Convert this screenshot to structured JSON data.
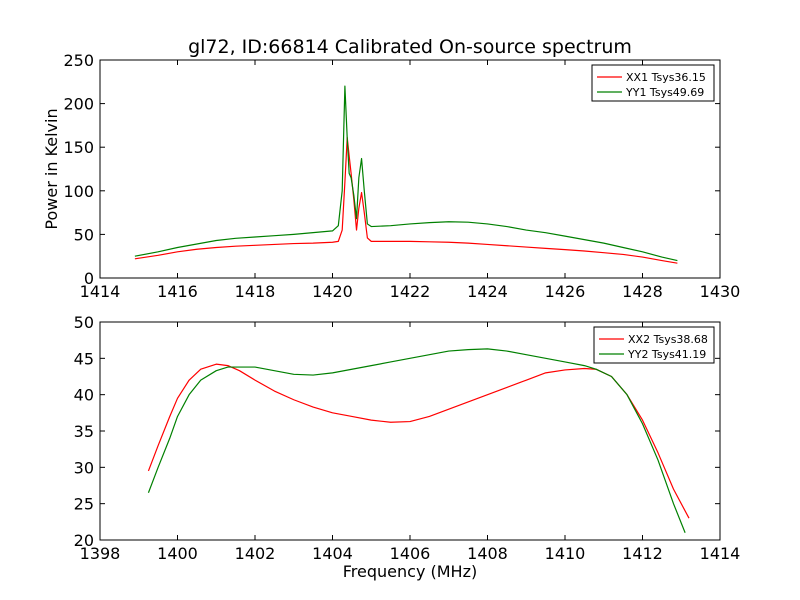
{
  "title": "gl72, ID:66814 Calibrated On-source spectrum",
  "chart_data": [
    {
      "type": "line",
      "ylabel": "Power in Kelvin",
      "xlabel": "",
      "xlim": [
        1414,
        1430
      ],
      "ylim": [
        0,
        250
      ],
      "xticks": [
        "1414",
        "1416",
        "1418",
        "1420",
        "1422",
        "1424",
        "1426",
        "1428",
        "1430"
      ],
      "yticks": [
        "0",
        "50",
        "100",
        "150",
        "200",
        "250"
      ],
      "legend_position": "top-right",
      "series": [
        {
          "name": "XX1 Tsys36.15",
          "color": "#ff0000",
          "x": [
            1414.9,
            1415.5,
            1416,
            1416.5,
            1417,
            1417.5,
            1418,
            1418.5,
            1419,
            1419.5,
            1420,
            1420.15,
            1420.25,
            1420.32,
            1420.38,
            1420.43,
            1420.48,
            1420.55,
            1420.62,
            1420.68,
            1420.75,
            1420.82,
            1420.9,
            1421,
            1421.5,
            1422,
            1422.5,
            1423,
            1423.5,
            1424,
            1424.5,
            1425,
            1425.5,
            1426,
            1426.5,
            1427,
            1427.5,
            1428,
            1428.5,
            1428.9
          ],
          "y": [
            22,
            26,
            30,
            33,
            35,
            36.5,
            37.5,
            38.5,
            39.5,
            40,
            41,
            42,
            55,
            110,
            161,
            140,
            120,
            90,
            55,
            80,
            98,
            75,
            46,
            42,
            42,
            42,
            41.5,
            41,
            40,
            38.5,
            37,
            35.5,
            34,
            32.5,
            31,
            29,
            27,
            24,
            20,
            17
          ]
        },
        {
          "name": "YY1 Tsys49.69",
          "color": "#008000",
          "x": [
            1414.9,
            1415.5,
            1416,
            1416.5,
            1417,
            1417.5,
            1418,
            1418.5,
            1419,
            1419.5,
            1420,
            1420.15,
            1420.25,
            1420.32,
            1420.38,
            1420.43,
            1420.48,
            1420.55,
            1420.62,
            1420.68,
            1420.75,
            1420.82,
            1420.9,
            1421,
            1421.5,
            1422,
            1422.5,
            1423,
            1423.5,
            1424,
            1424.5,
            1425,
            1425.5,
            1426,
            1426.5,
            1427,
            1427.5,
            1428,
            1428.5,
            1428.9
          ],
          "y": [
            25,
            30,
            35,
            39,
            43,
            45.5,
            47,
            48.5,
            50,
            52,
            54,
            60,
            100,
            220,
            160,
            120,
            115,
            95,
            68,
            115,
            137,
            100,
            62,
            59,
            60,
            62,
            63.5,
            64.5,
            64,
            62,
            59,
            55,
            52,
            48,
            44,
            40,
            35,
            30,
            24,
            20
          ]
        }
      ]
    },
    {
      "type": "line",
      "ylabel": "",
      "xlabel": "Frequency (MHz)",
      "xlim": [
        1398,
        1414
      ],
      "ylim": [
        20,
        50
      ],
      "xticks": [
        "1398",
        "1400",
        "1402",
        "1404",
        "1406",
        "1408",
        "1410",
        "1412",
        "1414"
      ],
      "yticks": [
        "20",
        "25",
        "30",
        "35",
        "40",
        "45",
        "50"
      ],
      "legend_position": "top-right",
      "series": [
        {
          "name": "XX2 Tsys38.68",
          "color": "#ff0000",
          "x": [
            1399.25,
            1399.5,
            1399.8,
            1400,
            1400.3,
            1400.6,
            1401,
            1401.3,
            1401.6,
            1402,
            1402.5,
            1403,
            1403.5,
            1404,
            1404.5,
            1405,
            1405.5,
            1406,
            1406.5,
            1407,
            1407.5,
            1408,
            1408.5,
            1409,
            1409.5,
            1410,
            1410.5,
            1410.8,
            1411.2,
            1411.6,
            1412,
            1412.4,
            1412.8,
            1413.2
          ],
          "y": [
            29.5,
            33,
            37,
            39.5,
            42,
            43.5,
            44.2,
            44,
            43.3,
            42,
            40.5,
            39.3,
            38.3,
            37.5,
            37,
            36.5,
            36.2,
            36.3,
            37,
            38,
            39,
            40,
            41,
            42,
            43,
            43.4,
            43.6,
            43.5,
            42.5,
            40,
            36.5,
            32,
            27,
            23
          ]
        },
        {
          "name": "YY2 Tsys41.19",
          "color": "#008000",
          "x": [
            1399.25,
            1399.5,
            1399.8,
            1400,
            1400.3,
            1400.6,
            1401,
            1401.3,
            1401.6,
            1402,
            1402.5,
            1403,
            1403.5,
            1404,
            1404.5,
            1405,
            1405.5,
            1406,
            1406.5,
            1407,
            1407.5,
            1408,
            1408.5,
            1409,
            1409.5,
            1410,
            1410.5,
            1410.8,
            1411.2,
            1411.6,
            1412,
            1412.4,
            1412.8,
            1413.1
          ],
          "y": [
            26.5,
            30,
            34,
            37,
            40,
            42,
            43.3,
            43.8,
            43.8,
            43.8,
            43.3,
            42.8,
            42.7,
            43,
            43.5,
            44,
            44.5,
            45,
            45.5,
            46,
            46.2,
            46.3,
            46,
            45.5,
            45,
            44.5,
            44,
            43.5,
            42.5,
            40,
            36,
            31,
            25,
            21
          ]
        }
      ]
    }
  ]
}
